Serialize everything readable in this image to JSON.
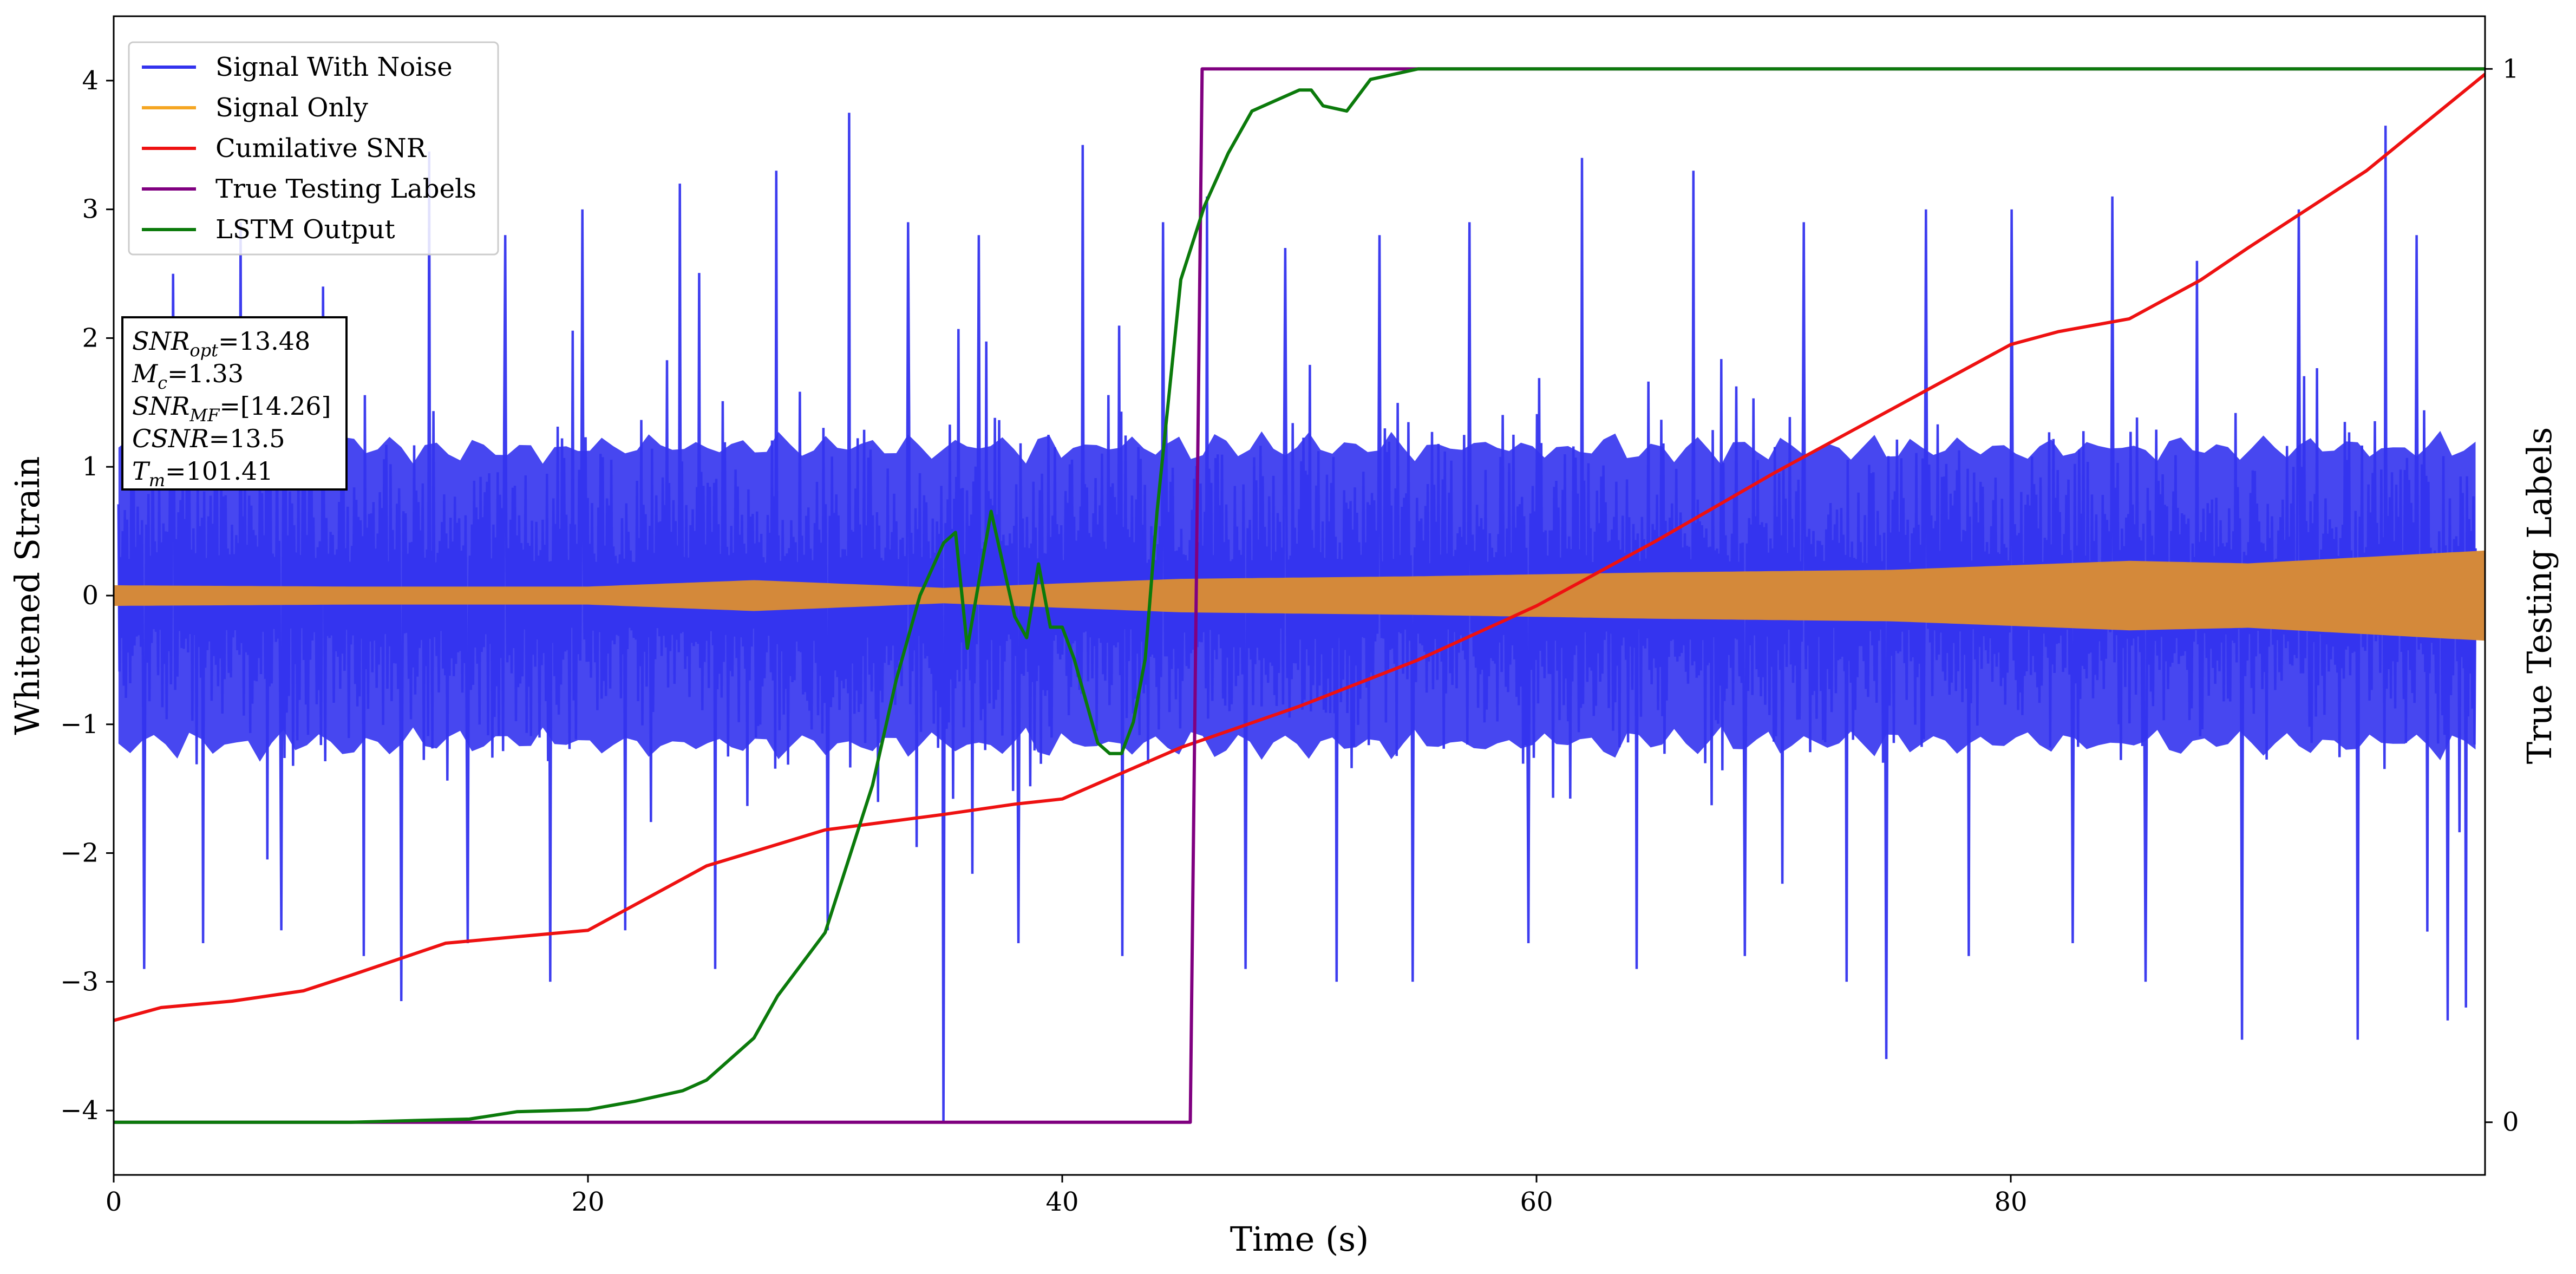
{
  "chart_data": {
    "type": "line",
    "xlabel": "Time (s)",
    "ylabel": "Whitened Strain",
    "y2label": "True Testing Labels",
    "xlim": [
      0,
      100
    ],
    "ylim": [
      -4.5,
      4.5
    ],
    "y2lim": [
      -0.05,
      1.05
    ],
    "xticks": [
      0,
      20,
      40,
      60,
      80
    ],
    "yticks": [
      -4,
      -3,
      -2,
      -1,
      0,
      1,
      2,
      3,
      4
    ],
    "y2ticks": [
      0,
      1
    ],
    "grid": false,
    "legend_position": "top-left",
    "series": [
      {
        "name": "Signal With Noise",
        "color": "#3333ee",
        "axis": "left",
        "kind": "dense-noise",
        "typical_amplitude": 1.6,
        "spikes": [
          [
            1.1,
            -2.9
          ],
          [
            2.3,
            2.5
          ],
          [
            3.6,
            -2.7
          ],
          [
            5.2,
            2.9
          ],
          [
            6.9,
            -2.6
          ],
          [
            8.7,
            2.4
          ],
          [
            10.4,
            -2.8
          ],
          [
            12.0,
            -3.15
          ],
          [
            13.2,
            3.45
          ],
          [
            14.8,
            -2.7
          ],
          [
            16.4,
            2.8
          ],
          [
            18.3,
            -3.0
          ],
          [
            19.7,
            3.0
          ],
          [
            21.5,
            -2.6
          ],
          [
            23.8,
            3.2
          ],
          [
            25.3,
            -2.9
          ],
          [
            27.9,
            3.3
          ],
          [
            30.1,
            -2.6
          ],
          [
            31.0,
            3.75
          ],
          [
            33.5,
            2.9
          ],
          [
            35.0,
            -4.1
          ],
          [
            36.5,
            2.8
          ],
          [
            38.2,
            -2.7
          ],
          [
            40.9,
            3.5
          ],
          [
            42.6,
            -2.8
          ],
          [
            44.3,
            2.9
          ],
          [
            46.2,
            3.1
          ],
          [
            47.8,
            -2.9
          ],
          [
            49.5,
            2.7
          ],
          [
            51.7,
            -3.0
          ],
          [
            53.5,
            2.8
          ],
          [
            54.9,
            -3.0
          ],
          [
            57.3,
            2.9
          ],
          [
            59.8,
            -2.7
          ],
          [
            62.1,
            3.4
          ],
          [
            64.4,
            -2.9
          ],
          [
            66.8,
            3.3
          ],
          [
            69.0,
            -2.8
          ],
          [
            71.5,
            2.9
          ],
          [
            73.3,
            -3.0
          ],
          [
            75.0,
            -3.6
          ],
          [
            76.7,
            3.0
          ],
          [
            78.5,
            -2.8
          ],
          [
            80.3,
            3.0
          ],
          [
            82.9,
            -2.7
          ],
          [
            84.6,
            3.1
          ],
          [
            86.0,
            -3.0
          ],
          [
            88.2,
            2.6
          ],
          [
            90.1,
            -3.45
          ],
          [
            92.5,
            3.0
          ],
          [
            95.0,
            -3.45
          ],
          [
            96.2,
            3.65
          ],
          [
            97.5,
            2.8
          ],
          [
            98.8,
            -3.3
          ],
          [
            99.6,
            -3.2
          ]
        ]
      },
      {
        "name": "Signal Only",
        "color": "#f5a623",
        "axis": "left",
        "kind": "envelope",
        "envelope": [
          [
            0,
            0.08
          ],
          [
            10,
            0.07
          ],
          [
            20,
            0.07
          ],
          [
            27,
            0.12
          ],
          [
            35,
            0.06
          ],
          [
            45,
            0.13
          ],
          [
            55,
            0.15
          ],
          [
            65,
            0.18
          ],
          [
            75,
            0.2
          ],
          [
            85,
            0.27
          ],
          [
            90,
            0.25
          ],
          [
            95,
            0.3
          ],
          [
            100,
            0.35
          ]
        ]
      },
      {
        "name": "Cumilative SNR",
        "color": "#ee1111",
        "axis": "left",
        "x": [
          0,
          2,
          5,
          8,
          10,
          14,
          20,
          25,
          30,
          35,
          38,
          40,
          42,
          45,
          50,
          55,
          60,
          65,
          70,
          75,
          80,
          82,
          85,
          88,
          90,
          95,
          100
        ],
        "y": [
          -3.3,
          -3.2,
          -3.15,
          -3.07,
          -2.95,
          -2.7,
          -2.6,
          -2.1,
          -1.82,
          -1.7,
          -1.62,
          -1.58,
          -1.42,
          -1.18,
          -0.86,
          -0.5,
          -0.08,
          0.42,
          0.95,
          1.45,
          1.95,
          2.05,
          2.15,
          2.45,
          2.7,
          3.3,
          4.05
        ]
      },
      {
        "name": "True Testing Labels",
        "color": "#800080",
        "axis": "right",
        "x": [
          0,
          45.4,
          45.9,
          100
        ],
        "y": [
          0,
          0,
          1,
          1
        ]
      },
      {
        "name": "LSTM Output",
        "color": "#0b7a0b",
        "axis": "right",
        "x": [
          0,
          10,
          15,
          17,
          20,
          22,
          24,
          25,
          26,
          27,
          28,
          29,
          30,
          31,
          32,
          33,
          34,
          35,
          35.5,
          36,
          37,
          38,
          38.5,
          39,
          39.5,
          40,
          40.5,
          41,
          41.5,
          42,
          42.5,
          43,
          43.5,
          44,
          45,
          46,
          47,
          48,
          49,
          50,
          50.5,
          51,
          52,
          53,
          55,
          58,
          100
        ],
        "y": [
          0,
          0,
          0.003,
          0.01,
          0.012,
          0.02,
          0.03,
          0.04,
          0.06,
          0.08,
          0.12,
          0.15,
          0.18,
          0.25,
          0.32,
          0.42,
          0.5,
          0.55,
          0.56,
          0.45,
          0.58,
          0.48,
          0.46,
          0.53,
          0.47,
          0.47,
          0.44,
          0.4,
          0.36,
          0.35,
          0.35,
          0.38,
          0.44,
          0.58,
          0.8,
          0.87,
          0.92,
          0.96,
          0.97,
          0.98,
          0.98,
          0.965,
          0.96,
          0.99,
          1.0,
          1.0,
          1.0
        ]
      }
    ],
    "annotation": {
      "lines": [
        {
          "sym": "SNR",
          "sub": "opt",
          "val": "=13.48"
        },
        {
          "sym": "M",
          "sub": "c",
          "val": "=1.33"
        },
        {
          "sym": "SNR",
          "sub": "MF",
          "val": "=[14.26]"
        },
        {
          "sym": "CSNR",
          "sub": "",
          "val": "=13.5"
        },
        {
          "sym": "T",
          "sub": "m",
          "val": "=101.41"
        }
      ]
    }
  }
}
